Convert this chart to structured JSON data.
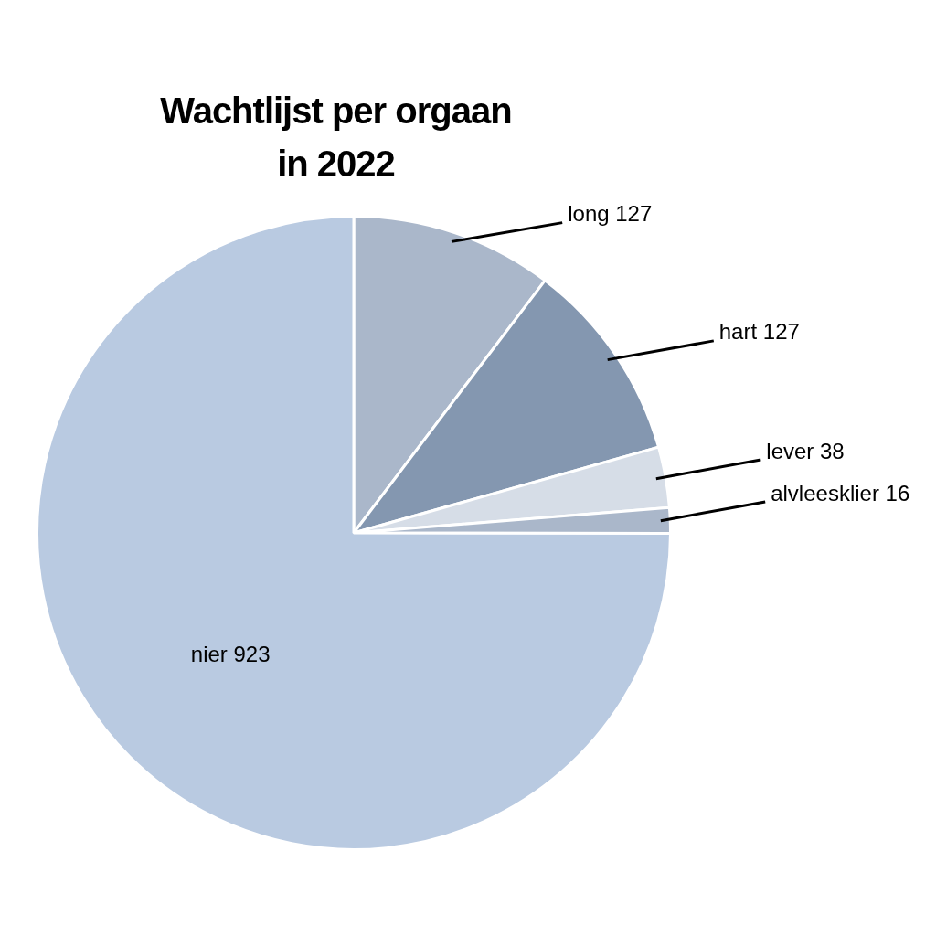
{
  "chart_data": {
    "type": "pie",
    "title": "Wachtlijst per orgaan\nin 2022",
    "categories": [
      "long",
      "hart",
      "lever",
      "alvleesklier",
      "nier"
    ],
    "values": [
      127,
      127,
      38,
      16,
      923
    ],
    "colors": [
      "#aab7ca",
      "#8497b0",
      "#d6dde7",
      "#aab7ca",
      "#b9cae1"
    ],
    "data_labels": true
  }
}
